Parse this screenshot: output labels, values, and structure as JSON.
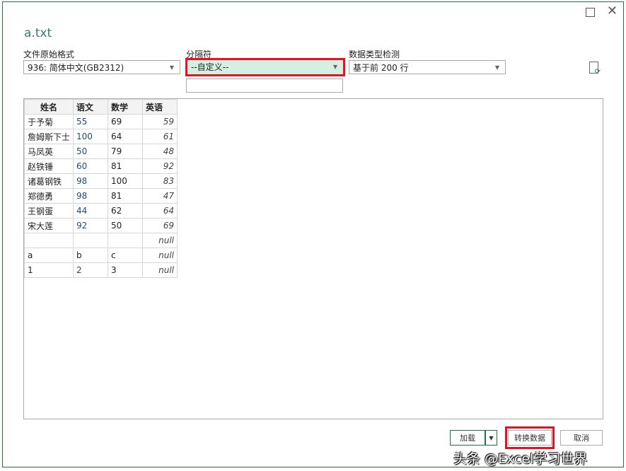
{
  "window": {
    "title": "a.txt",
    "maximize_icon": "square-icon",
    "close_icon": "close-icon"
  },
  "encoding": {
    "label": "文件原始格式",
    "value": "936: 简体中文(GB2312)"
  },
  "delimiter": {
    "label": "分隔符",
    "value": "--自定义--",
    "custom_value": ""
  },
  "detection": {
    "label": "数据类型检测",
    "value": "基于前 200 行"
  },
  "refresh_icon": "refresh-file-icon",
  "table": {
    "headers": [
      "姓名",
      "语文",
      "数学",
      "英语"
    ],
    "rows": [
      [
        "于予菊",
        "55",
        "69",
        "59"
      ],
      [
        "詹姆斯下士",
        "100",
        "64",
        "61"
      ],
      [
        "马凤英",
        "50",
        "79",
        "48"
      ],
      [
        "赵铁锤",
        "60",
        "81",
        "92"
      ],
      [
        "诸葛钢铁",
        "98",
        "100",
        "83"
      ],
      [
        "郑德勇",
        "98",
        "81",
        "47"
      ],
      [
        "王钢蛋",
        "44",
        "62",
        "64"
      ],
      [
        "宋大莲",
        "92",
        "50",
        "69"
      ],
      [
        "",
        "",
        "",
        "null"
      ],
      [
        "a",
        "b",
        "c",
        "null"
      ],
      [
        "1",
        "2",
        "3",
        "null"
      ]
    ]
  },
  "buttons": {
    "load": "加载",
    "transform": "转换数据",
    "cancel": "取消"
  },
  "watermark": "头条 @Excel学习世界",
  "colors": {
    "accent": "#217346",
    "highlight": "#e81123",
    "selected_bg": "#d5efe0"
  }
}
